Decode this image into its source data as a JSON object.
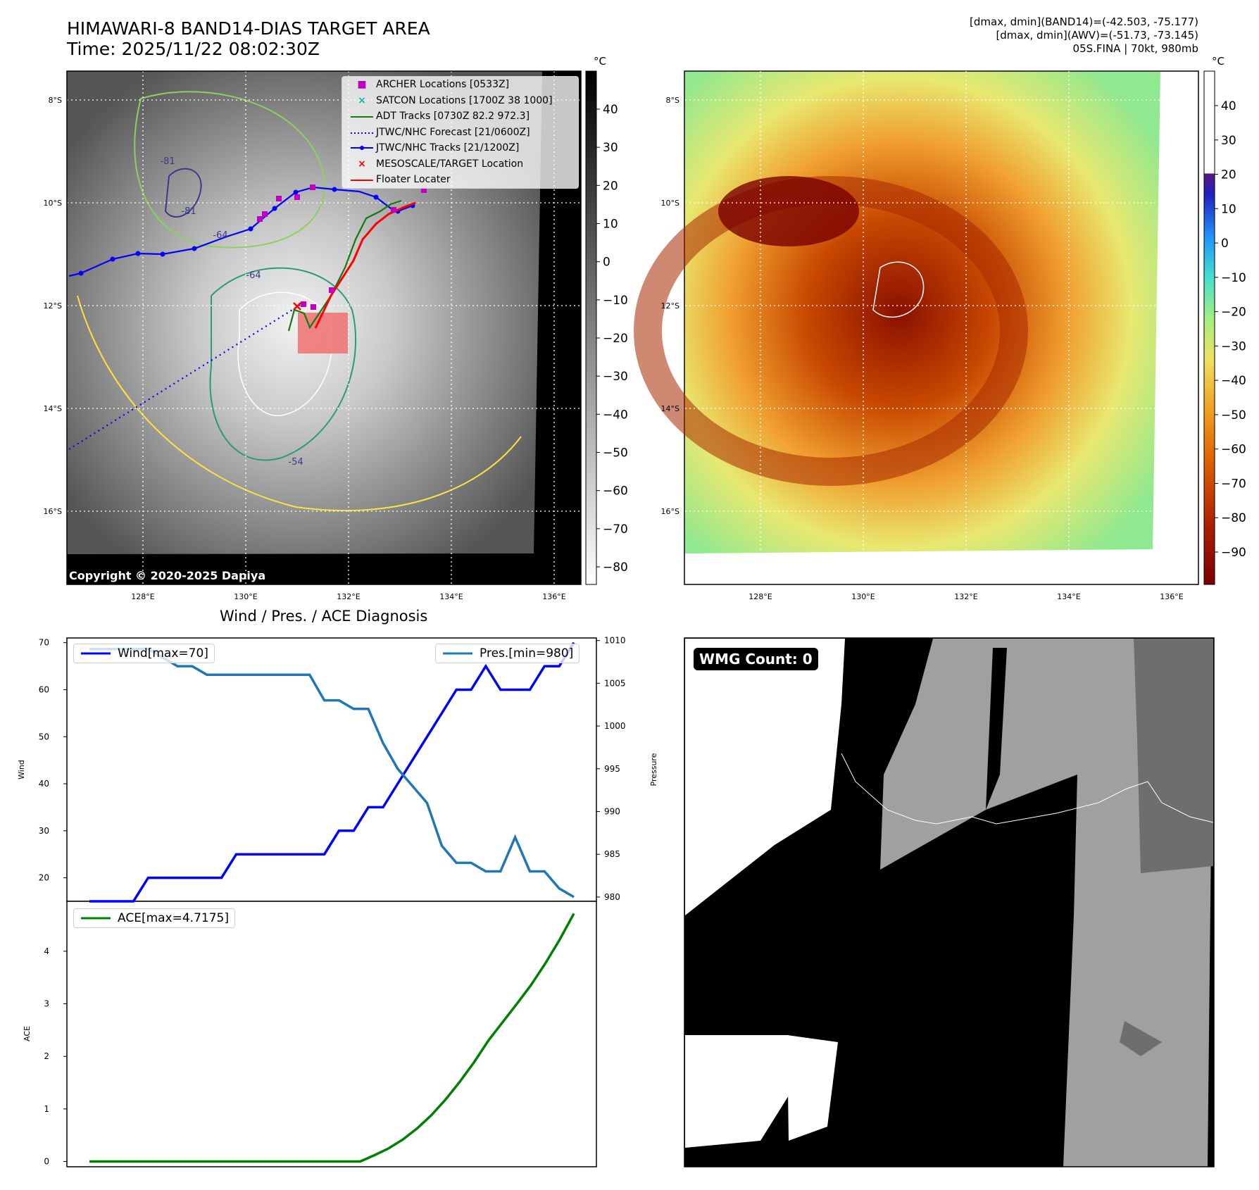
{
  "header": {
    "title_line1": "HIMAWARI-8 BAND14-DIAS TARGET AREA",
    "title_line2": "Time: 2025/11/22 08:02:30Z",
    "info_line1": "[dmax, dmin](BAND14)=(-42.503, -75.177)",
    "info_line2": "[dmax, dmin](AWV)=(-51.73, -73.145)",
    "info_line3": "05S.FINA | 70kt, 980mb"
  },
  "map": {
    "lat_labels": [
      "8°S",
      "10°S",
      "12°S",
      "14°S",
      "16°S"
    ],
    "lon_labels": [
      "128°E",
      "130°E",
      "132°E",
      "134°E",
      "136°E"
    ],
    "copyright": "Copyright © 2020-2025 Dapiya",
    "contour_labels": [
      "-81",
      "-81",
      "-64",
      "-64",
      "-54"
    ],
    "legend": [
      {
        "label": "ARCHER Locations [0533Z]",
        "symbol": "square",
        "color": "#c000c0"
      },
      {
        "label": "SATCON Locations [1700Z 38 1000]",
        "symbol": "x",
        "color": "#00b8b8"
      },
      {
        "label": "ADT Tracks [0730Z 82.2 972.3]",
        "symbol": "line",
        "color": "#117a11"
      },
      {
        "label": "JTWC/NHC Forecast [21/0600Z]",
        "symbol": "dotted",
        "color": "#0000ff"
      },
      {
        "label": "JTWC/NHC Tracks [21/1200Z]",
        "symbol": "line-dot",
        "color": "#0000ff"
      },
      {
        "label": "MESOSCALE/TARGET Location",
        "symbol": "x",
        "color": "#ff0000"
      },
      {
        "label": "Floater Locater",
        "symbol": "line",
        "color": "#ff0000"
      }
    ]
  },
  "colorbars": {
    "unit": "°C",
    "gray_ticks": [
      "40",
      "30",
      "20",
      "10",
      "0",
      "−10",
      "−20",
      "−30",
      "−40",
      "−50",
      "−60",
      "−70",
      "−80"
    ],
    "awv_ticks": [
      "40",
      "30",
      "20",
      "10",
      "0",
      "−10",
      "−20",
      "−30",
      "−40",
      "−50",
      "−60",
      "−70",
      "−80",
      "−90"
    ]
  },
  "wmg": {
    "label": "WMG Count: 0"
  },
  "chart_data": [
    {
      "type": "line",
      "title": "Wind / Pres. / ACE Diagnosis",
      "ylabel": "Wind",
      "ylim": [
        15,
        71
      ],
      "yticks": [
        20,
        30,
        40,
        50,
        60,
        70
      ],
      "series": [
        {
          "name": "Wind[max=70]",
          "color": "#0000ff",
          "values": [
            15,
            15,
            15,
            15,
            20,
            20,
            20,
            20,
            20,
            20,
            25,
            25,
            25,
            25,
            25,
            25,
            25,
            30,
            30,
            35,
            35,
            40,
            45,
            50,
            55,
            60,
            60,
            65,
            60,
            60,
            60,
            65,
            65,
            70
          ]
        }
      ]
    },
    {
      "type": "line",
      "ylabel": "Pressure",
      "ylim": [
        979.5,
        1010.3
      ],
      "yticks": [
        980,
        985,
        990,
        995,
        1000,
        1005,
        1010
      ],
      "series": [
        {
          "name": "Pres.[min=980]",
          "color": "#1f77b4",
          "values": [
            1009,
            1009,
            1009,
            1009,
            1009,
            1008,
            1007,
            1007,
            1006,
            1006,
            1006,
            1006,
            1006,
            1006,
            1006,
            1006,
            1003,
            1003,
            1002,
            1002,
            998,
            995,
            993,
            991,
            986,
            984,
            984,
            983,
            983,
            987,
            983,
            983,
            981,
            980
          ]
        }
      ]
    },
    {
      "type": "line",
      "ylabel": "ACE",
      "ylim": [
        -0.1,
        4.95
      ],
      "yticks": [
        0,
        1,
        2,
        3,
        4
      ],
      "series": [
        {
          "name": "ACE[max=4.7175]",
          "color": "#008000",
          "values": [
            0,
            0,
            0,
            0,
            0,
            0,
            0,
            0,
            0,
            0,
            0,
            0,
            0,
            0,
            0,
            0,
            0,
            0,
            0,
            0,
            0.12,
            0.25,
            0.42,
            0.63,
            0.88,
            1.18,
            1.52,
            1.89,
            2.3,
            2.65,
            3.0,
            3.36,
            3.77,
            4.22,
            4.7175
          ]
        }
      ]
    }
  ]
}
